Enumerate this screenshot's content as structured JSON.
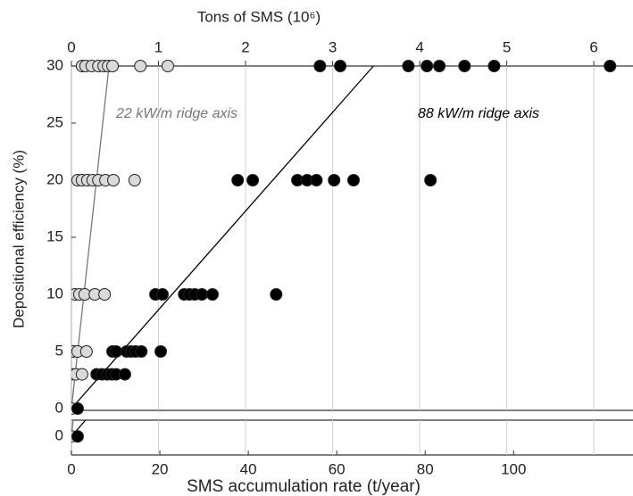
{
  "chart_data": [
    {
      "type": "scatter",
      "x2label": "Tons of SMS (10⁶)",
      "ylabel": "Depositional efficiency (%)",
      "xlim": [
        0,
        127
      ],
      "x2lim": [
        0,
        6.45
      ],
      "x2ticks": [
        0,
        1,
        2,
        3,
        4,
        5,
        6
      ],
      "ylim": [
        0,
        30
      ],
      "yticks": [
        0,
        5,
        10,
        15,
        20,
        25,
        30
      ],
      "grid": true,
      "series": [
        {
          "name": "22 kW/m ridge axis",
          "color": "#d9d9d9",
          "label_color": "#777777",
          "x": [
            2.4,
            3.2,
            4.6,
            6.1,
            7.3,
            8.3,
            9.3,
            15.6,
            21.8,
            1.4,
            2.4,
            3.6,
            4.8,
            6.1,
            7.7,
            9.5,
            14.3,
            0.8,
            1.8,
            3,
            5.3,
            7.5,
            0.4,
            1.4,
            3.4,
            0,
            1,
            2.4,
            0
          ],
          "values": [
            30,
            30,
            30,
            30,
            30,
            30,
            30,
            30,
            30,
            20,
            20,
            20,
            20,
            20,
            20,
            20,
            20,
            10,
            10,
            10,
            10,
            10,
            5,
            5,
            5,
            3,
            3,
            3,
            0
          ],
          "fit": {
            "x": [
              0,
              8.5
            ],
            "y": [
              0,
              30
            ]
          }
        },
        {
          "name": "88 kW/m ridge axis",
          "color": "#000000",
          "label_color": "#000000",
          "x": [
            56.2,
            60.8,
            76.2,
            80.4,
            83.2,
            88.9,
            95.6,
            121.8,
            37.6,
            41,
            51.1,
            53.3,
            55.4,
            59.4,
            63.8,
            81.2,
            19,
            20.6,
            25.5,
            26.7,
            27.9,
            29.5,
            31.9,
            46.3,
            9.3,
            10.1,
            12.5,
            13.5,
            14.5,
            15.8,
            20.2,
            5.7,
            6.9,
            8.1,
            9.1,
            10.1,
            12.1,
            1.4
          ],
          "values": [
            30,
            30,
            30,
            30,
            30,
            30,
            30,
            30,
            20,
            20,
            20,
            20,
            20,
            20,
            20,
            20,
            10,
            10,
            10,
            10,
            10,
            10,
            10,
            10,
            5,
            5,
            5,
            5,
            5,
            5,
            5,
            3,
            3,
            3,
            3,
            3,
            3,
            0
          ],
          "fit": {
            "x": [
              0,
              68.3
            ],
            "y": [
              0,
              30
            ]
          }
        }
      ]
    },
    {
      "type": "scatter",
      "xlabel": "SMS accumulation rate (t/year)",
      "xlim": [
        0,
        127
      ],
      "xticks": [
        0,
        20,
        40,
        60,
        80,
        100
      ],
      "ylim": [
        -1.6,
        1.4
      ],
      "yticks": [
        0
      ],
      "series": [
        {
          "color": "#d9d9d9",
          "x": [
            0
          ],
          "values": [
            0
          ],
          "fit": {
            "x": [
              0,
              8.5
            ],
            "y": [
              0,
              30
            ]
          }
        },
        {
          "color": "#000000",
          "x": [
            1.4
          ],
          "values": [
            0
          ],
          "fit": {
            "x": [
              0,
              68.3
            ],
            "y": [
              0,
              30
            ]
          }
        }
      ]
    }
  ]
}
